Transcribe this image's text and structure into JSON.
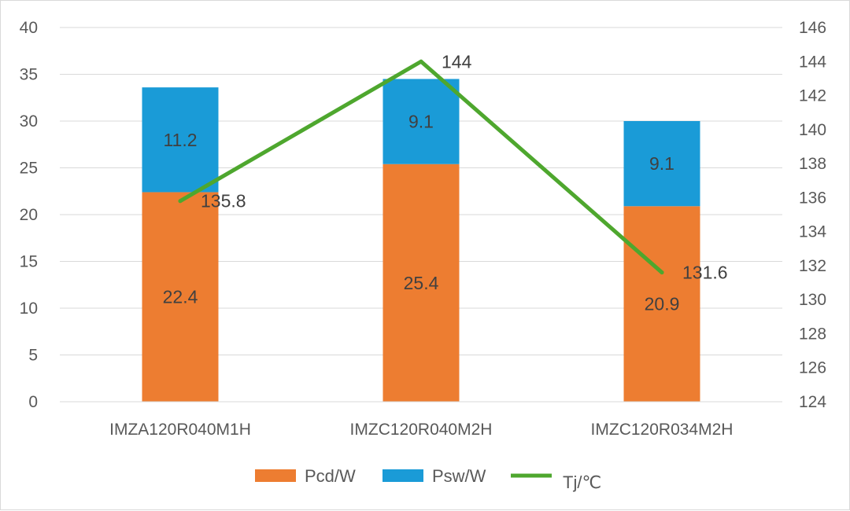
{
  "chart_data": {
    "type": "bar",
    "stacked": true,
    "categories": [
      "IMZA120R040M1H",
      "IMZC120R040M2H",
      "IMZC120R034M2H"
    ],
    "series": [
      {
        "name": "Pcd/W",
        "type": "bar",
        "axis": "left",
        "color": "#ED7D31",
        "values": [
          22.4,
          25.4,
          20.9
        ],
        "labels": [
          "22.4",
          "25.4",
          "20.9"
        ]
      },
      {
        "name": "Psw/W",
        "type": "bar",
        "axis": "left",
        "color": "#1A9BD7",
        "values": [
          11.2,
          9.1,
          9.1
        ],
        "labels": [
          "11.2",
          "9.1",
          "9.1"
        ]
      },
      {
        "name": "Tj/℃",
        "type": "line",
        "axis": "right",
        "color": "#4EA72E",
        "values": [
          135.8,
          144,
          131.6
        ],
        "labels": [
          "135.8",
          "144",
          "131.6"
        ]
      }
    ],
    "y_left": {
      "min": 0,
      "max": 40,
      "step": 5,
      "ticks": [
        "0",
        "5",
        "10",
        "15",
        "20",
        "25",
        "30",
        "35",
        "40"
      ]
    },
    "y_right": {
      "min": 124,
      "max": 146,
      "step": 2,
      "ticks": [
        "124",
        "126",
        "128",
        "130",
        "132",
        "134",
        "136",
        "138",
        "140",
        "142",
        "144",
        "146"
      ]
    },
    "grid": true,
    "legend": "bottom"
  }
}
